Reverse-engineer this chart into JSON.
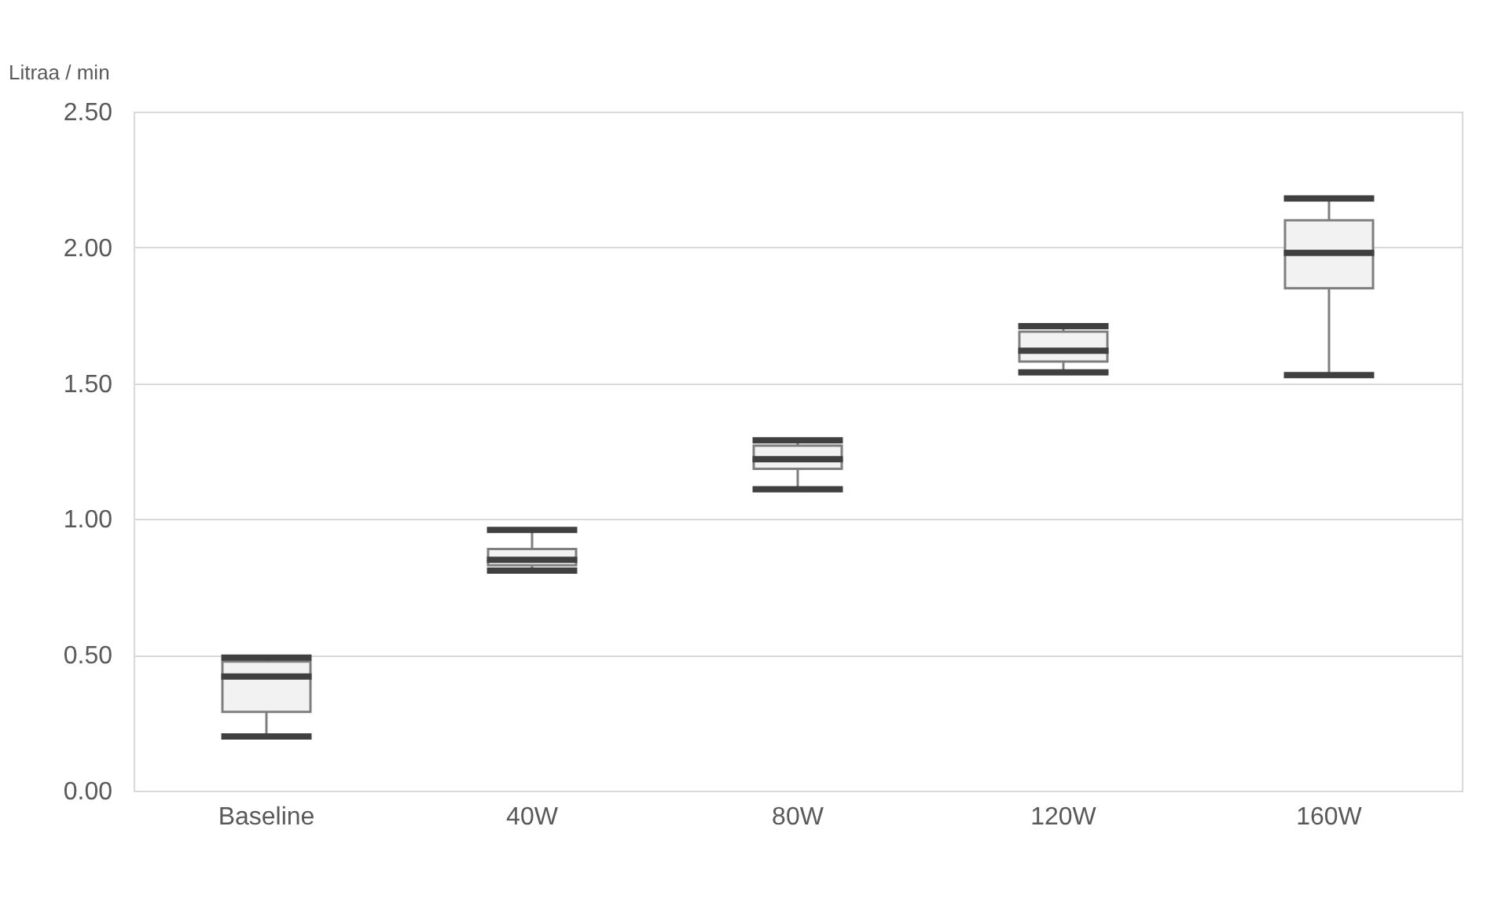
{
  "chart_data": {
    "type": "box",
    "ylabel": "Litraa / min",
    "categories": [
      "Baseline",
      "40W",
      "80W",
      "120W",
      "160W"
    ],
    "boxes": [
      {
        "low": 0.2,
        "q1": 0.29,
        "median": 0.42,
        "q3": 0.475,
        "high": 0.49
      },
      {
        "low": 0.81,
        "q1": 0.83,
        "median": 0.85,
        "q3": 0.89,
        "high": 0.96
      },
      {
        "low": 1.11,
        "q1": 1.185,
        "median": 1.22,
        "q3": 1.27,
        "high": 1.29
      },
      {
        "low": 1.54,
        "q1": 1.58,
        "median": 1.62,
        "q3": 1.69,
        "high": 1.71
      },
      {
        "low": 1.53,
        "q1": 1.85,
        "median": 1.98,
        "q3": 2.1,
        "high": 2.18
      }
    ],
    "color": "#f2f2f2",
    "ylim": [
      0,
      2.5
    ],
    "yticks": [
      {
        "value": 0,
        "label": "0.00"
      },
      {
        "value": 0.5,
        "label": "0.50"
      },
      {
        "value": 1,
        "label": "1.00"
      },
      {
        "value": 1.5,
        "label": "1.50"
      },
      {
        "value": 2,
        "label": "2.00"
      },
      {
        "value": 2.5,
        "label": "2.50"
      }
    ],
    "grid": "y"
  }
}
